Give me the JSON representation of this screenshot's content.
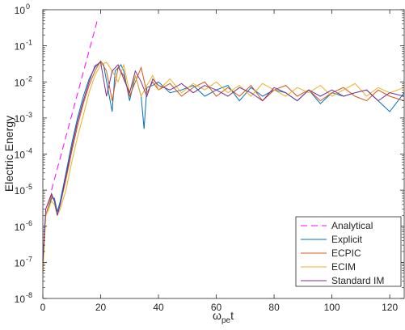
{
  "chart_data": {
    "type": "line",
    "title": "",
    "xlabel": {
      "main": "ω",
      "sub": "pe",
      "suffix": "t"
    },
    "ylabel": "Electric Energy",
    "xlim": [
      0,
      125
    ],
    "ylim_log10": [
      -8,
      0
    ],
    "yscale": "log",
    "x_ticks": [
      0,
      20,
      40,
      60,
      80,
      100,
      120
    ],
    "x_tick_labels": [
      "0",
      "20",
      "40",
      "60",
      "80",
      "100",
      "120"
    ],
    "y_ticks": [
      -8,
      -7,
      -6,
      -5,
      -4,
      -3,
      -2,
      -1,
      0
    ],
    "y_tick_labels": [
      {
        "base": "10",
        "exp": "-8"
      },
      {
        "base": "10",
        "exp": "-7"
      },
      {
        "base": "10",
        "exp": "-6"
      },
      {
        "base": "10",
        "exp": "-5"
      },
      {
        "base": "10",
        "exp": "-4"
      },
      {
        "base": "10",
        "exp": "-3"
      },
      {
        "base": "10",
        "exp": "-2"
      },
      {
        "base": "10",
        "exp": "-1"
      },
      {
        "base": "10",
        "exp": "0"
      }
    ],
    "grid": false,
    "legend_position": "bottom-right",
    "series": [
      {
        "name": "Analytical",
        "color": "#ff00ff",
        "dash": true,
        "x": [
          3,
          19
        ],
        "y": [
          1e-05,
          0.56
        ]
      },
      {
        "name": "Explicit",
        "color": "#0072bd",
        "x": [
          0,
          1,
          2,
          3,
          4,
          5,
          6,
          8,
          10,
          12,
          14,
          16,
          18,
          20,
          21,
          23,
          24,
          25,
          27,
          28,
          30,
          32,
          34,
          35,
          36,
          38,
          40,
          44,
          48,
          52,
          56,
          60,
          64,
          68,
          72,
          76,
          80,
          84,
          88,
          92,
          96,
          100,
          104,
          108,
          112,
          116,
          120,
          125
        ],
        "y": [
          1e-07,
          2e-06,
          3e-06,
          6e-06,
          6e-06,
          2.5e-06,
          5e-06,
          3e-05,
          0.0002,
          0.001,
          0.004,
          0.012,
          0.025,
          0.037,
          0.03,
          0.004,
          0.0015,
          0.02,
          0.03,
          0.02,
          0.003,
          0.015,
          0.004,
          0.0005,
          0.007,
          0.008,
          0.01,
          0.005,
          0.006,
          0.008,
          0.004,
          0.006,
          0.008,
          0.003,
          0.007,
          0.004,
          0.006,
          0.005,
          0.003,
          0.006,
          0.0025,
          0.005,
          0.004,
          0.005,
          0.006,
          0.003,
          0.0015,
          0.005
        ]
      },
      {
        "name": "ECPIC",
        "color": "#d95319",
        "x": [
          0,
          1,
          2,
          3,
          4,
          5,
          6,
          8,
          10,
          12,
          14,
          16,
          18,
          20,
          22,
          24,
          26,
          28,
          30,
          32,
          34,
          36,
          38,
          40,
          44,
          48,
          52,
          56,
          60,
          64,
          68,
          72,
          76,
          80,
          84,
          88,
          92,
          96,
          100,
          104,
          108,
          112,
          116,
          120,
          125
        ],
        "y": [
          1e-07,
          2e-06,
          4e-06,
          7e-06,
          5e-06,
          2e-06,
          4e-06,
          2e-05,
          0.00012,
          0.0006,
          0.0025,
          0.008,
          0.02,
          0.038,
          0.02,
          0.003,
          0.025,
          0.015,
          0.004,
          0.01,
          0.025,
          0.005,
          0.01,
          0.006,
          0.009,
          0.004,
          0.007,
          0.01,
          0.004,
          0.007,
          0.004,
          0.008,
          0.003,
          0.006,
          0.008,
          0.004,
          0.006,
          0.003,
          0.005,
          0.007,
          0.004,
          0.003,
          0.006,
          0.004,
          0.003
        ]
      },
      {
        "name": "ECIM",
        "color": "#edb120",
        "x": [
          0,
          1,
          2,
          3,
          4,
          5,
          6,
          8,
          10,
          12,
          14,
          16,
          18,
          20,
          22,
          24,
          26,
          28,
          30,
          32,
          34,
          36,
          38,
          40,
          44,
          48,
          52,
          56,
          60,
          64,
          68,
          72,
          76,
          80,
          84,
          88,
          92,
          96,
          100,
          104,
          108,
          112,
          116,
          120,
          125
        ],
        "y": [
          5e-08,
          2e-06,
          3e-06,
          5e-06,
          4e-06,
          2e-06,
          3e-06,
          1e-05,
          6e-05,
          0.0003,
          0.0012,
          0.005,
          0.015,
          0.03,
          0.035,
          0.02,
          0.01,
          0.03,
          0.005,
          0.015,
          0.004,
          0.008,
          0.015,
          0.006,
          0.012,
          0.005,
          0.009,
          0.006,
          0.01,
          0.005,
          0.008,
          0.004,
          0.009,
          0.006,
          0.004,
          0.007,
          0.005,
          0.008,
          0.004,
          0.006,
          0.009,
          0.004,
          0.007,
          0.005,
          0.007
        ]
      },
      {
        "name": "Standard IM",
        "color": "#7e2f8e",
        "x": [
          0,
          1,
          2,
          3,
          4,
          5,
          6,
          8,
          10,
          12,
          14,
          16,
          18,
          20,
          22,
          24,
          26,
          28,
          30,
          32,
          34,
          36,
          38,
          40,
          44,
          48,
          52,
          56,
          60,
          64,
          68,
          72,
          76,
          80,
          84,
          88,
          92,
          96,
          100,
          104,
          108,
          112,
          116,
          120,
          125
        ],
        "y": [
          1e-07,
          3e-06,
          5e-06,
          8e-06,
          5e-06,
          2e-06,
          4e-06,
          2.5e-05,
          0.00015,
          0.0008,
          0.003,
          0.01,
          0.028,
          0.035,
          0.004,
          0.02,
          0.03,
          0.012,
          0.005,
          0.02,
          0.01,
          0.004,
          0.012,
          0.008,
          0.006,
          0.009,
          0.005,
          0.008,
          0.006,
          0.004,
          0.007,
          0.005,
          0.003,
          0.007,
          0.005,
          0.003,
          0.006,
          0.004,
          0.006,
          0.004,
          0.005,
          0.006,
          0.003,
          0.005,
          0.004
        ]
      }
    ]
  }
}
